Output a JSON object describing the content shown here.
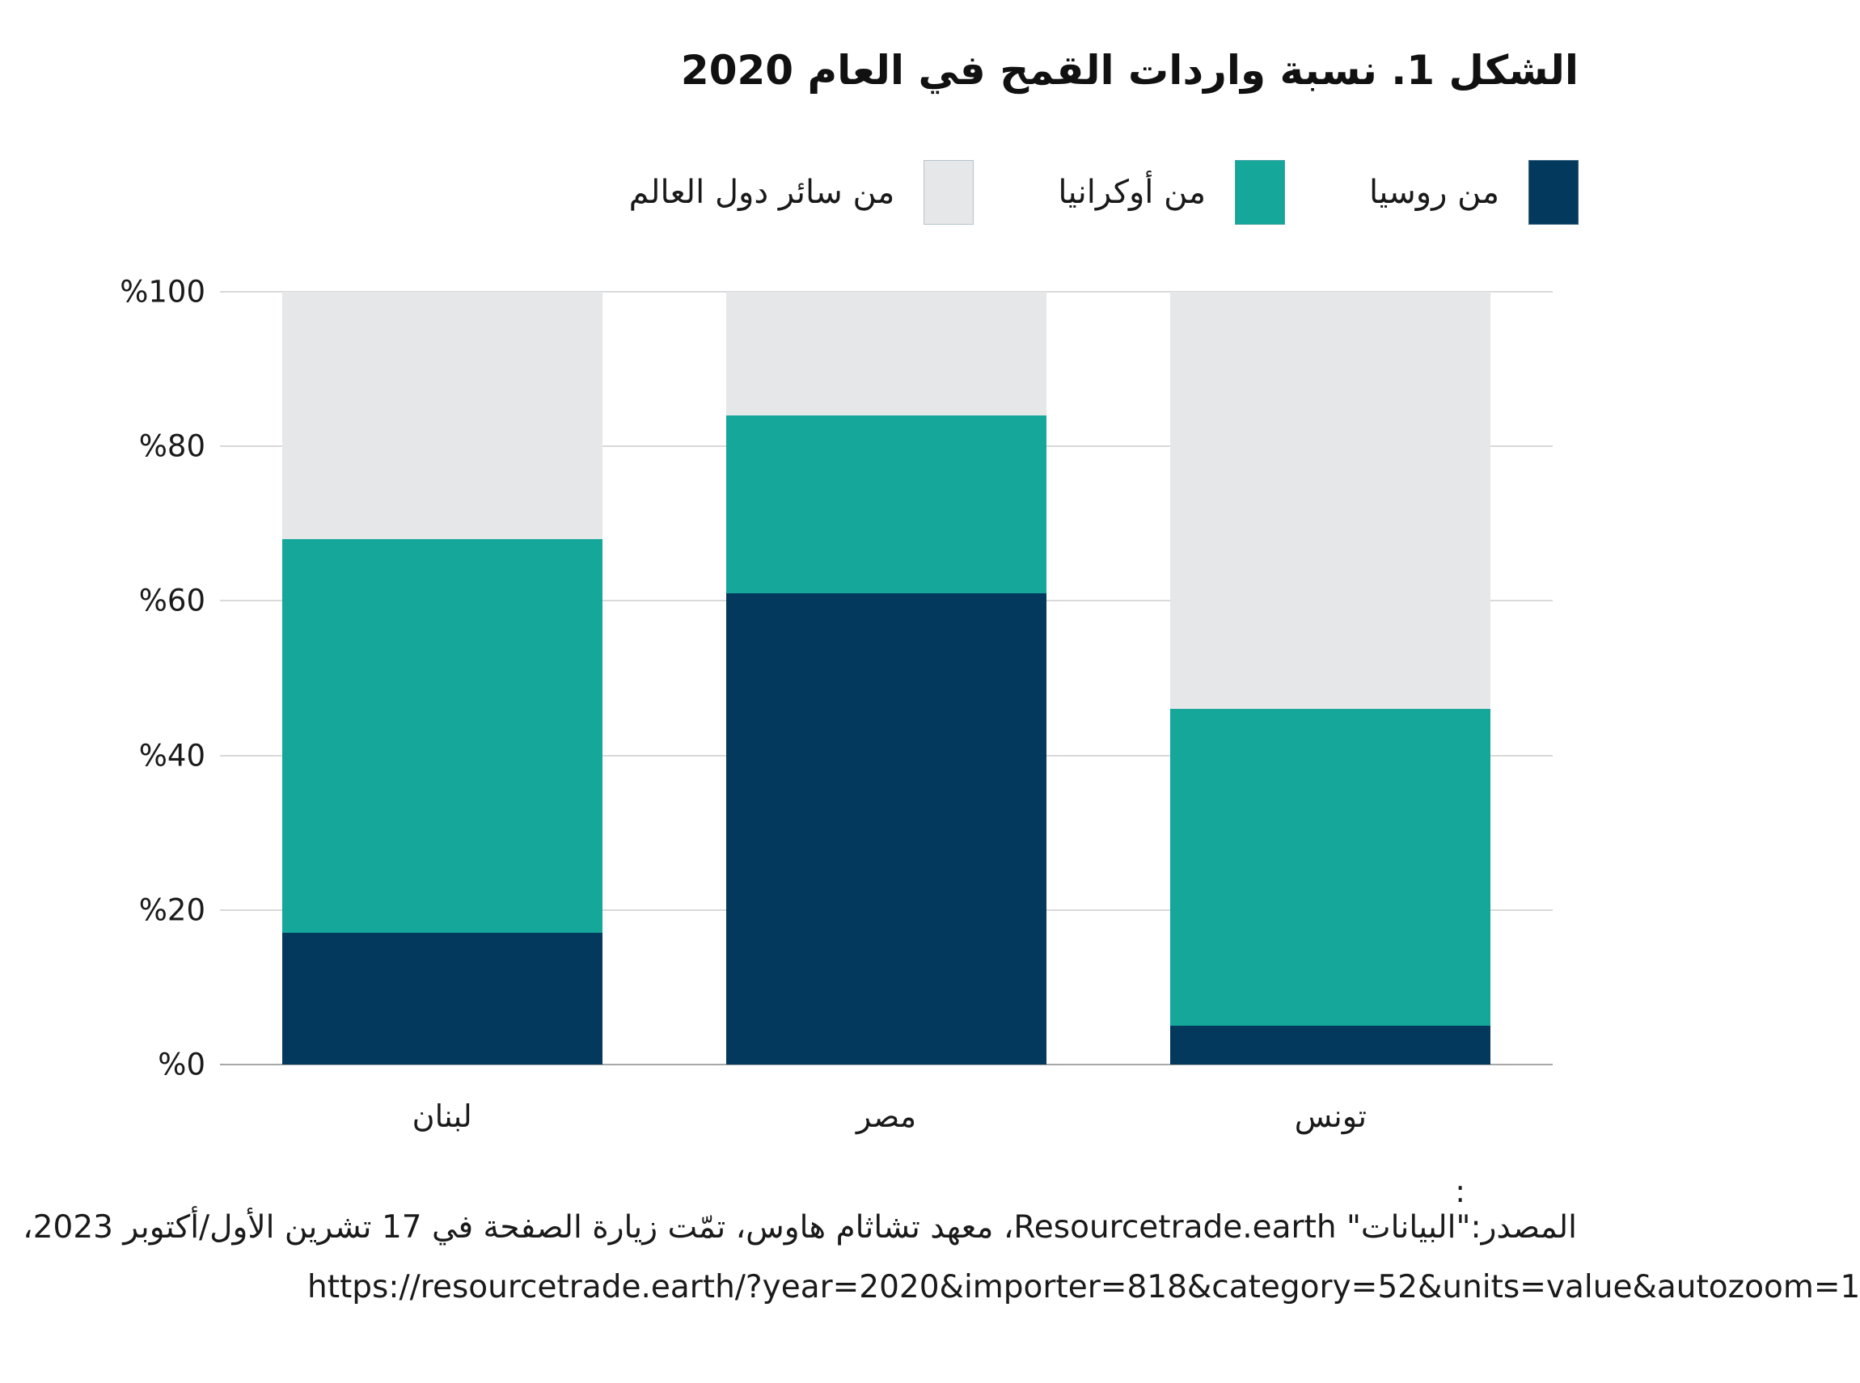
{
  "title": "الشكل 1. نسبة واردات القمح في العام 2020",
  "legend": [
    {
      "label": "من روسيا",
      "slug": "russia",
      "color": "#04395E"
    },
    {
      "label": "من أوكرانيا",
      "slug": "ukraine",
      "color": "#14A79A"
    },
    {
      "label": "من سائر دول العالم",
      "slug": "rest-of-world",
      "color": "#E6E7E8"
    }
  ],
  "chart_data": {
    "type": "bar",
    "stacked": true,
    "direction": "rtl",
    "title": "الشكل 1. نسبة واردات القمح في العام 2020",
    "categories": [
      {
        "label": "لبنان",
        "slug": "lebanon"
      },
      {
        "label": "مصر",
        "slug": "egypt"
      },
      {
        "label": "تونس",
        "slug": "tunisia"
      }
    ],
    "series": [
      {
        "name": "من روسيا",
        "slug": "russia",
        "color": "#04395E",
        "values": [
          17,
          61,
          5
        ]
      },
      {
        "name": "من أوكرانيا",
        "slug": "ukraine",
        "color": "#14A79A",
        "values": [
          51,
          23,
          41
        ]
      },
      {
        "name": "من سائر دول العالم",
        "slug": "rest-of-world",
        "color": "#E6E7E8",
        "values": [
          32,
          16,
          54
        ]
      }
    ],
    "ylim": [
      0,
      100
    ],
    "yticks": [
      {
        "value": 100,
        "label": "%100"
      },
      {
        "value": 80,
        "label": "%80"
      },
      {
        "value": 60,
        "label": "%60"
      },
      {
        "value": 40,
        "label": "%40"
      },
      {
        "value": 20,
        "label": "%20"
      },
      {
        "value": 0,
        "label": "%0"
      }
    ],
    "grid": true,
    "legend_position": "top"
  },
  "source": {
    "colon": ":",
    "line1": "المصدر:\"البيانات\" Resourcetrade.earth، معهد تشاثام هاوس، تمّت زيارة الصفحة في 17 تشرين الأول/أكتوبر 2023،",
    "line2": "https://resourcetrade.earth/?year=2020&importer=818&category=52&units=value&autozoom=1"
  },
  "colors": {
    "russia": "#04395E",
    "ukraine": "#14A79A",
    "rest_of_world": "#E6E7E8",
    "gridline": "#D9D9D9",
    "axis": "#A8A8A8",
    "text": "#1A1A1A",
    "background": "#FFFFFF"
  }
}
